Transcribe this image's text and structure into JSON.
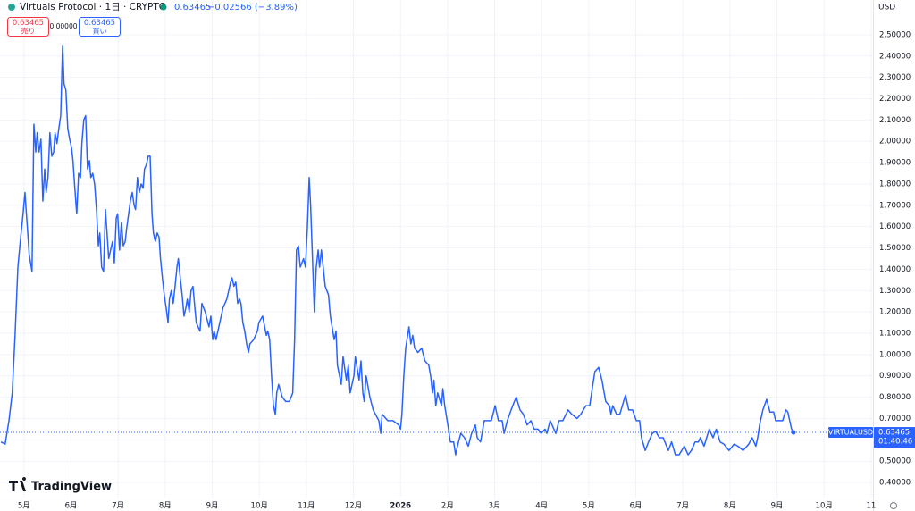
{
  "header": {
    "title": "Virtuals Protocol · 1日 · CRYPTO",
    "price": "0.63465",
    "change": "−0.02566 (−3.89%)",
    "sell": {
      "price": "0.63465",
      "label": "売り"
    },
    "spread": "0.00000",
    "buy": {
      "price": "0.63465",
      "label": "買い"
    },
    "currency": "USD",
    "brand": "TradingView"
  },
  "chart_data": {
    "type": "line",
    "x": [
      -0.49,
      -0.4,
      -0.32,
      -0.25,
      -0.19,
      -0.13,
      -0.08,
      -0.02,
      0.02,
      0.08,
      0.11,
      0.17,
      0.21,
      0.25,
      0.28,
      0.32,
      0.36,
      0.4,
      0.44,
      0.47,
      0.51,
      0.55,
      0.59,
      0.63,
      0.66,
      0.7,
      0.74,
      0.78,
      0.82,
      0.85,
      0.89,
      0.93,
      0.97,
      1.01,
      1.04,
      1.08,
      1.12,
      1.16,
      1.2,
      1.23,
      1.27,
      1.31,
      1.35,
      1.39,
      1.42,
      1.46,
      1.5,
      1.54,
      1.58,
      1.61,
      1.65,
      1.69,
      1.73,
      1.77,
      1.8,
      1.84,
      1.88,
      1.92,
      1.96,
      1.99,
      2.03,
      2.07,
      2.11,
      2.15,
      2.18,
      2.26,
      2.3,
      2.34,
      2.37,
      2.41,
      2.45,
      2.49,
      2.53,
      2.56,
      2.6,
      2.64,
      2.68,
      2.72,
      2.75,
      2.79,
      2.83,
      2.87,
      2.9,
      2.94,
      2.98,
      3.02,
      3.06,
      3.09,
      3.13,
      3.17,
      3.21,
      3.25,
      3.28,
      3.32,
      3.36,
      3.4,
      3.44,
      3.47,
      3.51,
      3.55,
      3.59,
      3.63,
      3.66,
      3.74,
      3.78,
      3.85,
      3.93,
      3.97,
      4.01,
      4.04,
      4.08,
      4.16,
      4.23,
      4.31,
      4.39,
      4.42,
      4.46,
      4.5,
      4.54,
      4.58,
      4.61,
      4.65,
      4.69,
      4.73,
      4.77,
      4.8,
      4.88,
      4.96,
      4.99,
      5.07,
      5.15,
      5.18,
      5.22,
      5.26,
      5.3,
      5.34,
      5.37,
      5.41,
      5.49,
      5.56,
      5.64,
      5.71,
      5.75,
      5.79,
      5.83,
      5.87,
      5.94,
      5.98,
      6.02,
      6.06,
      6.09,
      6.13,
      6.17,
      6.21,
      6.25,
      6.28,
      6.32,
      6.4,
      6.47,
      6.51,
      6.59,
      6.63,
      6.66,
      6.74,
      6.78,
      6.85,
      6.89,
      6.93,
      7.01,
      7.04,
      7.12,
      7.16,
      7.2,
      7.23,
      7.27,
      7.35,
      7.42,
      7.54,
      7.58,
      7.61,
      7.73,
      7.84,
      7.96,
      8.0,
      8.03,
      8.07,
      8.11,
      8.18,
      8.22,
      8.26,
      8.3,
      8.37,
      8.45,
      8.52,
      8.6,
      8.64,
      8.68,
      8.71,
      8.75,
      8.79,
      8.87,
      8.9,
      8.94,
      9.02,
      9.06,
      9.13,
      9.17,
      9.21,
      9.28,
      9.36,
      9.44,
      9.51,
      9.59,
      9.63,
      9.7,
      9.78,
      9.85,
      9.93,
      10.01,
      10.08,
      10.16,
      10.2,
      10.27,
      10.35,
      10.42,
      10.46,
      10.54,
      10.61,
      10.69,
      10.77,
      10.84,
      10.92,
      10.99,
      11.07,
      11.11,
      11.18,
      11.26,
      11.3,
      11.37,
      11.45,
      11.56,
      11.64,
      11.75,
      11.83,
      11.94,
      12.02,
      12.06,
      12.13,
      12.21,
      12.28,
      12.36,
      12.44,
      12.47,
      12.51,
      12.59,
      12.66,
      12.74,
      12.78,
      12.85,
      12.93,
      13.01,
      13.08,
      13.12,
      13.2,
      13.27,
      13.35,
      13.42,
      13.5,
      13.58,
      13.69,
      13.76,
      13.84,
      13.92,
      14.03,
      14.11,
      14.18,
      14.26,
      14.33,
      14.37,
      14.45,
      14.56,
      14.64,
      14.71,
      14.79,
      14.87,
      14.98,
      15.09,
      15.17,
      15.28,
      15.4,
      15.47,
      15.55,
      15.59,
      15.63,
      15.7,
      15.78,
      15.85,
      15.93,
      15.97,
      16.04,
      16.12,
      16.19,
      16.23,
      16.31,
      16.35
    ],
    "series": [
      {
        "name": "VIRTUALUSD",
        "color": "#2962ff",
        "values": [
          0.59,
          0.58,
          0.69,
          0.82,
          1.09,
          1.41,
          1.53,
          1.66,
          1.76,
          1.57,
          1.47,
          1.39,
          2.08,
          1.95,
          2.04,
          1.95,
          2.01,
          1.72,
          1.87,
          1.76,
          1.83,
          2.04,
          1.93,
          1.95,
          2.04,
          1.99,
          2.06,
          2.12,
          2.45,
          2.27,
          2.24,
          2.06,
          2.01,
          1.97,
          1.91,
          1.78,
          1.66,
          1.85,
          1.83,
          1.99,
          2.1,
          2.12,
          1.87,
          1.91,
          1.83,
          1.85,
          1.8,
          1.68,
          1.51,
          1.57,
          1.41,
          1.39,
          1.68,
          1.55,
          1.45,
          1.49,
          1.53,
          1.43,
          1.64,
          1.66,
          1.49,
          1.62,
          1.51,
          1.53,
          1.59,
          1.72,
          1.76,
          1.7,
          1.68,
          1.83,
          1.76,
          1.8,
          1.78,
          1.87,
          1.89,
          1.93,
          1.93,
          1.66,
          1.57,
          1.53,
          1.57,
          1.55,
          1.45,
          1.36,
          1.28,
          1.22,
          1.15,
          1.26,
          1.3,
          1.24,
          1.32,
          1.41,
          1.45,
          1.36,
          1.28,
          1.18,
          1.22,
          1.26,
          1.2,
          1.3,
          1.32,
          1.22,
          1.15,
          1.11,
          1.24,
          1.2,
          1.13,
          1.18,
          1.07,
          1.11,
          1.07,
          1.15,
          1.22,
          1.26,
          1.34,
          1.36,
          1.32,
          1.34,
          1.24,
          1.26,
          1.24,
          1.15,
          1.11,
          1.05,
          1.01,
          1.05,
          1.07,
          1.11,
          1.15,
          1.18,
          1.09,
          1.11,
          1.07,
          0.9,
          0.76,
          0.72,
          0.82,
          0.86,
          0.8,
          0.78,
          0.78,
          0.82,
          1.07,
          1.49,
          1.51,
          1.41,
          1.45,
          1.41,
          1.59,
          1.83,
          1.7,
          1.45,
          1.2,
          1.41,
          1.49,
          1.41,
          1.49,
          1.32,
          1.28,
          1.18,
          1.07,
          1.11,
          0.95,
          0.86,
          0.99,
          0.88,
          0.95,
          0.82,
          0.9,
          0.99,
          0.88,
          0.97,
          0.82,
          0.78,
          0.9,
          0.8,
          0.74,
          0.69,
          0.63,
          0.72,
          0.69,
          0.69,
          0.67,
          0.65,
          0.72,
          0.9,
          1.03,
          1.13,
          1.05,
          1.09,
          1.03,
          1.01,
          1.03,
          0.97,
          0.95,
          0.9,
          0.82,
          0.88,
          0.76,
          0.82,
          0.76,
          0.84,
          0.76,
          0.65,
          0.59,
          0.59,
          0.53,
          0.57,
          0.63,
          0.61,
          0.57,
          0.63,
          0.67,
          0.61,
          0.59,
          0.69,
          0.69,
          0.69,
          0.76,
          0.69,
          0.69,
          0.63,
          0.69,
          0.74,
          0.78,
          0.8,
          0.74,
          0.72,
          0.67,
          0.69,
          0.65,
          0.65,
          0.63,
          0.65,
          0.63,
          0.69,
          0.65,
          0.63,
          0.69,
          0.69,
          0.74,
          0.72,
          0.7,
          0.72,
          0.76,
          0.76,
          0.82,
          0.92,
          0.94,
          0.88,
          0.78,
          0.76,
          0.72,
          0.76,
          0.72,
          0.72,
          0.78,
          0.81,
          0.74,
          0.74,
          0.69,
          0.69,
          0.61,
          0.55,
          0.59,
          0.63,
          0.64,
          0.61,
          0.61,
          0.55,
          0.59,
          0.53,
          0.53,
          0.57,
          0.53,
          0.55,
          0.59,
          0.59,
          0.61,
          0.57,
          0.65,
          0.61,
          0.65,
          0.59,
          0.58,
          0.55,
          0.58,
          0.57,
          0.55,
          0.58,
          0.61,
          0.57,
          0.61,
          0.67,
          0.74,
          0.79,
          0.73,
          0.73,
          0.69,
          0.69,
          0.69,
          0.74,
          0.73,
          0.65,
          0.63465
        ]
      }
    ],
    "price_tag": {
      "price": "0.63465",
      "countdown": "01:40:46"
    },
    "xlim": [
      -0.51,
      18.04
    ],
    "xticks": [
      {
        "value": 0,
        "label": "5月"
      },
      {
        "value": 1,
        "label": "6月"
      },
      {
        "value": 2,
        "label": "7月"
      },
      {
        "value": 3,
        "label": "8月"
      },
      {
        "value": 4,
        "label": "9月"
      },
      {
        "value": 5,
        "label": "10月"
      },
      {
        "value": 6,
        "label": "11月"
      },
      {
        "value": 7,
        "label": "12月"
      },
      {
        "value": 8,
        "label": "2026"
      },
      {
        "value": 9,
        "label": "2月"
      },
      {
        "value": 10,
        "label": "3月"
      },
      {
        "value": 11,
        "label": "4月"
      },
      {
        "value": 12,
        "label": "5月"
      },
      {
        "value": 13,
        "label": "6月"
      },
      {
        "value": 14,
        "label": "7月"
      },
      {
        "value": 15,
        "label": "8月"
      },
      {
        "value": 16,
        "label": "9月"
      },
      {
        "value": 17,
        "label": "10月"
      },
      {
        "value": 18,
        "label": "11"
      }
    ],
    "ylim": [
      0.329,
      2.663
    ],
    "yticks": [
      {
        "value": 0.4,
        "label": "0.40000"
      },
      {
        "value": 0.5,
        "label": "0.50000"
      },
      {
        "value": 0.6,
        "label": "0.60000"
      },
      {
        "value": 0.7,
        "label": "0.70000"
      },
      {
        "value": 0.8,
        "label": "0.80000"
      },
      {
        "value": 0.9,
        "label": "0.90000"
      },
      {
        "value": 1.0,
        "label": "1.00000"
      },
      {
        "value": 1.1,
        "label": "1.10000"
      },
      {
        "value": 1.2,
        "label": "1.20000"
      },
      {
        "value": 1.3,
        "label": "1.30000"
      },
      {
        "value": 1.4,
        "label": "1.40000"
      },
      {
        "value": 1.5,
        "label": "1.50000"
      },
      {
        "value": 1.6,
        "label": "1.60000"
      },
      {
        "value": 1.7,
        "label": "1.70000"
      },
      {
        "value": 1.8,
        "label": "1.80000"
      },
      {
        "value": 1.9,
        "label": "1.90000"
      },
      {
        "value": 2.0,
        "label": "2.00000"
      },
      {
        "value": 2.1,
        "label": "2.10000"
      },
      {
        "value": 2.2,
        "label": "2.20000"
      },
      {
        "value": 2.3,
        "label": "2.30000"
      },
      {
        "value": 2.4,
        "label": "2.40000"
      },
      {
        "value": 2.5,
        "label": "2.50000"
      }
    ],
    "grid": true
  }
}
